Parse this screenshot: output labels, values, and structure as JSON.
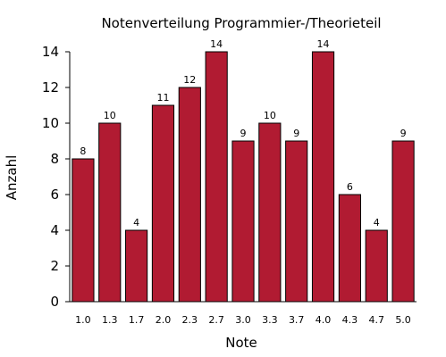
{
  "chart_data": {
    "type": "bar",
    "title": "Notenverteilung Programmier-/Theorieteil",
    "xlabel": "Note",
    "ylabel": "Anzahl",
    "categories": [
      "1.0",
      "1.3",
      "1.7",
      "2.0",
      "2.3",
      "2.7",
      "3.0",
      "3.3",
      "3.7",
      "4.0",
      "4.3",
      "4.7",
      "5.0"
    ],
    "values": [
      8,
      10,
      4,
      11,
      12,
      14,
      9,
      10,
      9,
      14,
      6,
      4,
      9
    ],
    "ylim": [
      0,
      14
    ],
    "yticks": [
      0,
      2,
      4,
      6,
      8,
      10,
      12,
      14
    ],
    "bar_color": "#b11b32",
    "grid": false,
    "legend": "none"
  }
}
